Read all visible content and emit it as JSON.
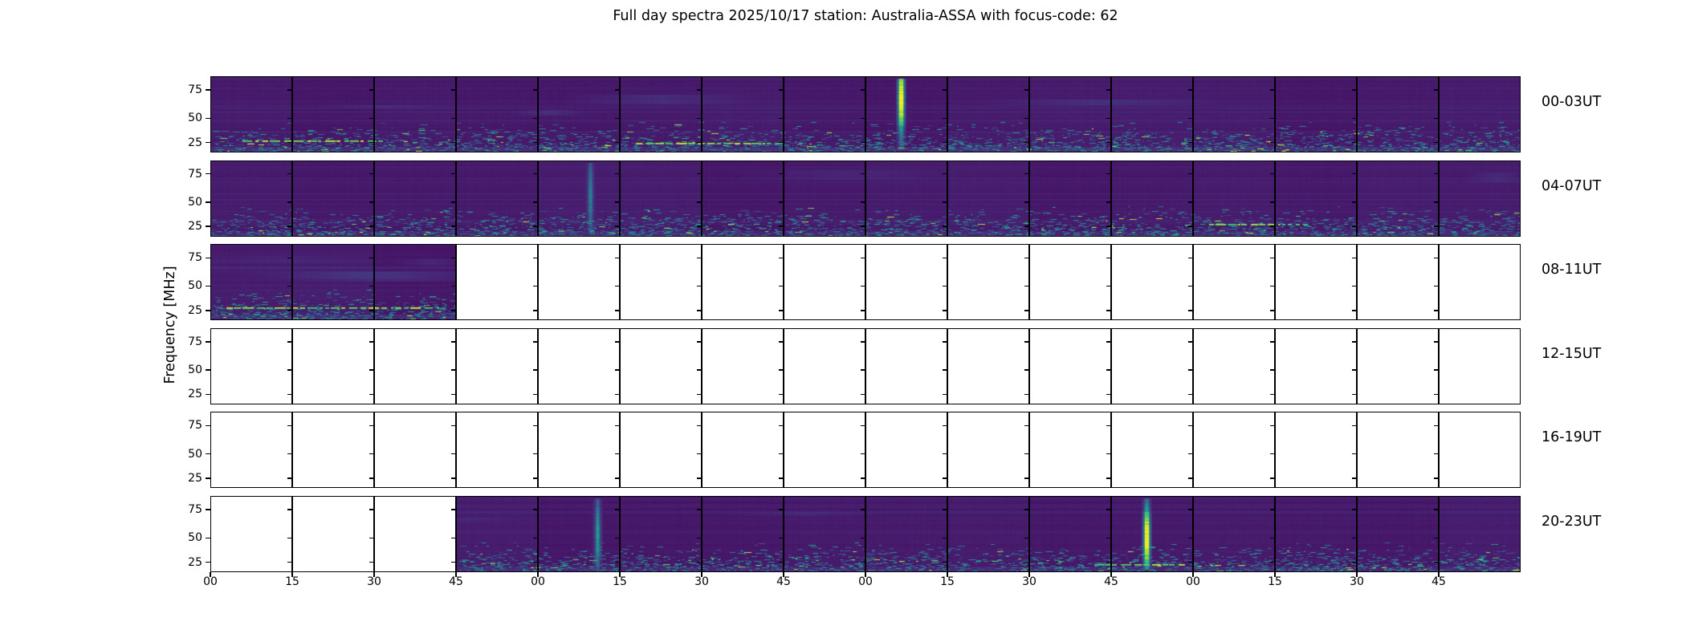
{
  "title": "Full day spectra 2025/10/17 station: Australia-ASSA with focus-code: 62",
  "y_axis_label": "Frequency [MHz]",
  "chart_data": {
    "type": "heatmap",
    "description": "Six stacked spectrogram strips, each covering 4 hours split into 16 fifteen-minute segments; viridis colormap, white where no data recorded",
    "colormap": "viridis",
    "y_tick_labels": [
      "75",
      "50",
      "25"
    ],
    "y_range_mhz": [
      15,
      90
    ],
    "x_tick_labels": [
      "00",
      "15",
      "30",
      "45",
      "00",
      "15",
      "30",
      "45",
      "00",
      "15",
      "30",
      "45",
      "00",
      "15",
      "30",
      "45"
    ],
    "segments_per_row": 16,
    "minutes_per_segment": 15,
    "rows": [
      {
        "label": "00-03UT",
        "filled_segments": [
          0,
          16
        ],
        "bursts": [
          {
            "segment": 8,
            "pos": 0.43,
            "strength": 1.0,
            "peak": 0.3
          }
        ],
        "bright_lines": [
          [
            0.4,
            2.1,
            0.85
          ],
          [
            5.2,
            7.0,
            0.88
          ]
        ]
      },
      {
        "label": "04-07UT",
        "filled_segments": [
          0,
          16
        ],
        "bursts": [
          {
            "segment": 4,
            "pos": 0.64,
            "strength": 0.32,
            "peak": 0.45
          }
        ],
        "bright_lines": [
          [
            12.2,
            13.4,
            0.84
          ]
        ]
      },
      {
        "label": "08-11UT",
        "filled_segments": [
          0,
          3
        ],
        "bursts": [],
        "bright_lines": [
          [
            0.2,
            2.8,
            0.84
          ]
        ]
      },
      {
        "label": "12-15UT",
        "filled_segments": [
          0,
          0
        ],
        "bursts": [],
        "bright_lines": []
      },
      {
        "label": "16-19UT",
        "filled_segments": [
          0,
          0
        ],
        "bursts": [],
        "bright_lines": []
      },
      {
        "label": "20-23UT",
        "filled_segments": [
          3,
          16
        ],
        "bursts": [
          {
            "segment": 4,
            "pos": 0.73,
            "strength": 0.45,
            "peak": 0.5
          },
          {
            "segment": 11,
            "pos": 0.43,
            "strength": 1.0,
            "peak": 0.55
          }
        ],
        "bright_lines": [
          [
            10.8,
            11.9,
            0.9
          ]
        ]
      }
    ],
    "colors": {
      "background": "#ffffff",
      "axis": "#000000",
      "spectrogram_base": "#46206e",
      "noise_band": "#2ab07f",
      "burst_peak": "#fde725"
    }
  }
}
